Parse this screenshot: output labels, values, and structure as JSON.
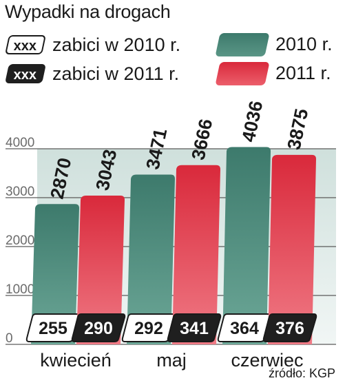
{
  "title": "Wypadki na drogach",
  "legend": {
    "killed_2010": {
      "badge": "xxx",
      "text": "zabici w 2010 r."
    },
    "killed_2011": {
      "badge": "xxx",
      "text": "zabici w 2011 r."
    },
    "series_2010": "2010 r.",
    "series_2011": "2011 r."
  },
  "colors": {
    "series_2010": "#3d7a6c",
    "series_2011": "#d9293b",
    "badge_dark": "#1f1f1f"
  },
  "source": "źródło: KGP",
  "chart_data": {
    "type": "bar",
    "title": "Wypadki na drogach",
    "categories": [
      "kwiecień",
      "maj",
      "czerwiec"
    ],
    "series": [
      {
        "name": "2010 r.",
        "values": [
          2870,
          3471,
          4036
        ],
        "killed": [
          255,
          292,
          364
        ]
      },
      {
        "name": "2011 r.",
        "values": [
          3043,
          3666,
          3875
        ],
        "killed": [
          290,
          341,
          376
        ]
      }
    ],
    "ylim": [
      0,
      4000
    ],
    "yticks": [
      "0",
      "1000",
      "2000",
      "3000",
      "4000"
    ],
    "grid": true
  }
}
